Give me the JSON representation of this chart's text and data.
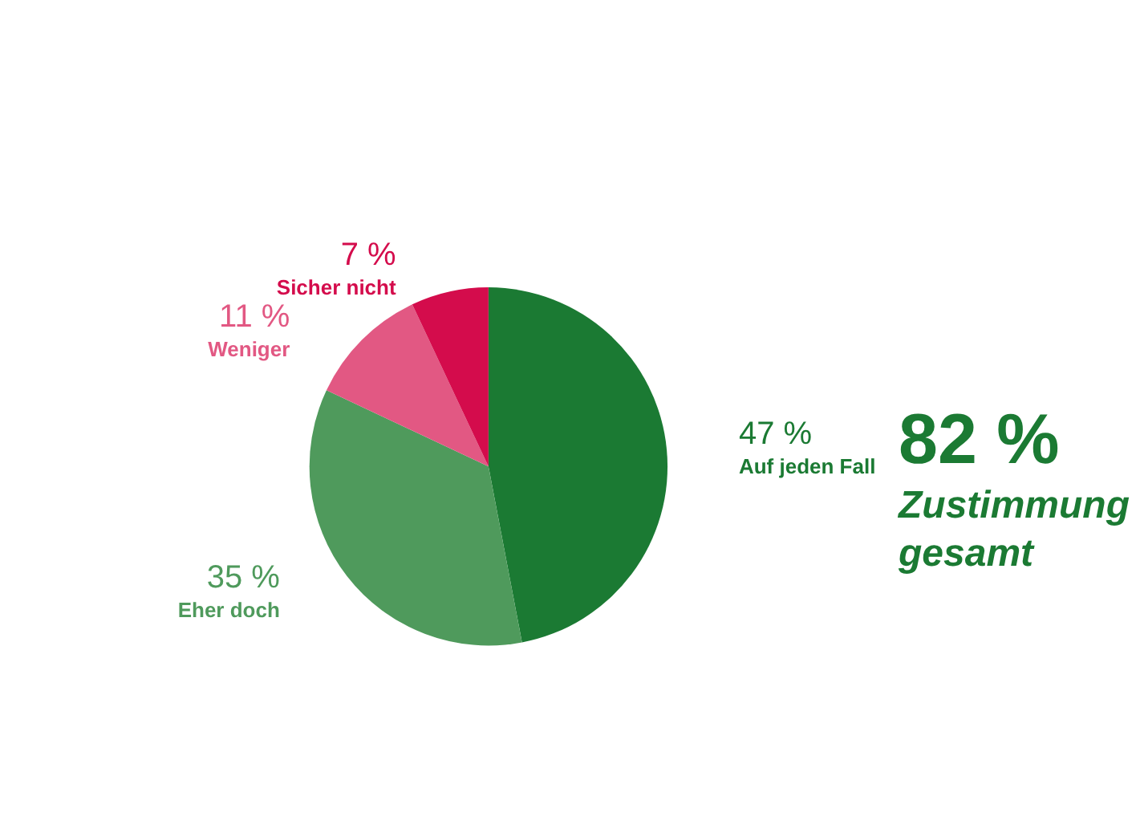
{
  "chart_data": {
    "type": "pie",
    "categories": [
      "Auf jeden Fall",
      "Eher doch",
      "Weniger",
      "Sicher nicht"
    ],
    "values": [
      47,
      35,
      11,
      7
    ],
    "colors": [
      "#1b7a33",
      "#4f9a5c",
      "#e25883",
      "#d40c4c"
    ],
    "value_labels": [
      "47 %",
      "35 %",
      "11 %",
      "7 %"
    ],
    "annotations": [
      "82 %",
      "Zustimmung gesamt"
    ],
    "legend": false
  }
}
